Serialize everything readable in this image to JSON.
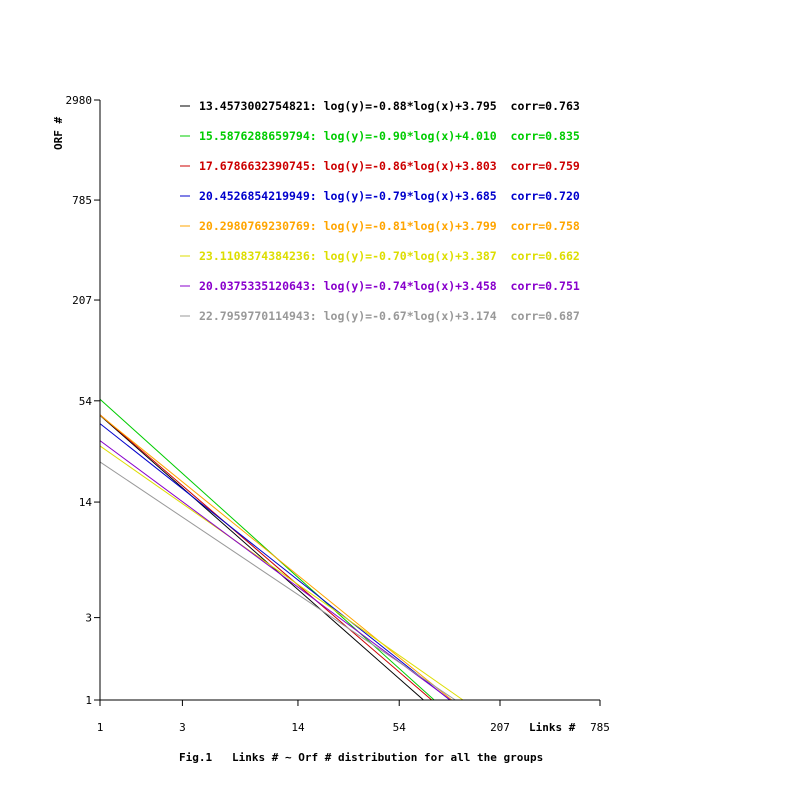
{
  "chart_data": {
    "type": "line",
    "title": "",
    "caption": "Fig.1   Links # ~ Orf # distribution for all the groups",
    "xlabel": "Links #",
    "ylabel": "ORF #",
    "x_scale": "log",
    "y_scale": "log",
    "xlim": [
      1,
      785
    ],
    "ylim": [
      1,
      2980
    ],
    "x_ticks": [
      "1",
      "3",
      "14",
      "54",
      "207",
      "785"
    ],
    "y_ticks": [
      "1",
      "3",
      "14",
      "54",
      "207",
      "785",
      "2980"
    ],
    "grid": false,
    "legend_position": "top",
    "series": [
      {
        "name": "13.4573002754821",
        "label": "13.4573002754821: log(y)=-0.88*log(x)+3.795  corr=0.763",
        "slope": -0.88,
        "intercept": 3.795,
        "corr": 0.763,
        "color": "#000000"
      },
      {
        "name": "15.5876288659794",
        "label": "15.5876288659794: log(y)=-0.90*log(x)+4.010  corr=0.835",
        "slope": -0.9,
        "intercept": 4.01,
        "corr": 0.835,
        "color": "#00cc00"
      },
      {
        "name": "17.6786632390745",
        "label": "17.6786632390745: log(y)=-0.86*log(x)+3.803  corr=0.759",
        "slope": -0.86,
        "intercept": 3.803,
        "corr": 0.759,
        "color": "#cc0000"
      },
      {
        "name": "20.4526854219949",
        "label": "20.4526854219949: log(y)=-0.79*log(x)+3.685  corr=0.720",
        "slope": -0.79,
        "intercept": 3.685,
        "corr": 0.72,
        "color": "#0000cc"
      },
      {
        "name": "20.2980769230769",
        "label": "20.2980769230769: log(y)=-0.81*log(x)+3.799  corr=0.758",
        "slope": -0.81,
        "intercept": 3.799,
        "corr": 0.758,
        "color": "#ffa500"
      },
      {
        "name": "23.1108374384236",
        "label": "23.1108374384236: log(y)=-0.70*log(x)+3.387  corr=0.662",
        "slope": -0.7,
        "intercept": 3.387,
        "corr": 0.662,
        "color": "#dddd00"
      },
      {
        "name": "20.0375335120643",
        "label": "20.0375335120643: log(y)=-0.74*log(x)+3.458  corr=0.751",
        "slope": -0.74,
        "intercept": 3.458,
        "corr": 0.751,
        "color": "#8800cc"
      },
      {
        "name": "22.7959770114943",
        "label": "22.7959770114943: log(y)=-0.67*log(x)+3.174  corr=0.687",
        "slope": -0.67,
        "intercept": 3.174,
        "corr": 0.687,
        "color": "#999999"
      }
    ]
  }
}
